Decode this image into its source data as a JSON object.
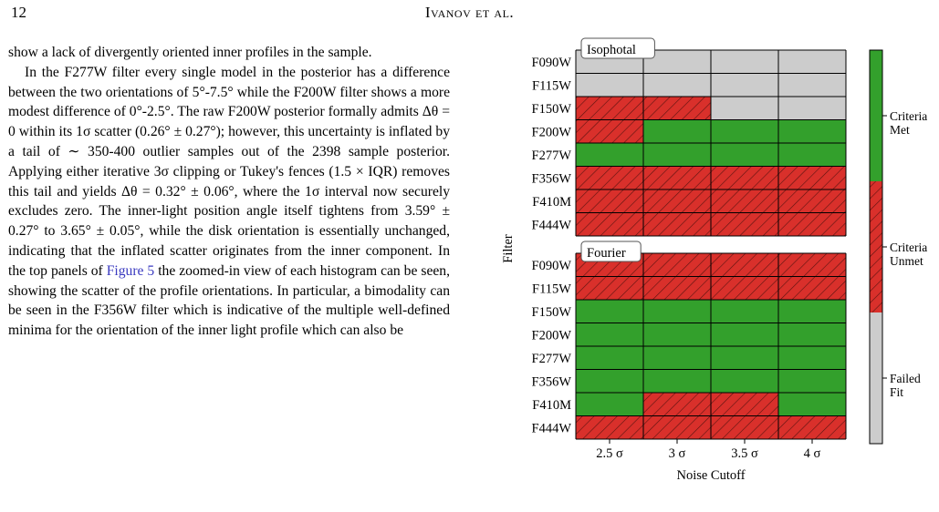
{
  "header": {
    "page_number": "12",
    "running_title": "Ivanov et al."
  },
  "text": {
    "p1": "show a lack of divergently oriented inner profiles in the sample.",
    "p2_a": "In the F277W filter every single model in the posterior has a difference between the two orientations of 5°-7.5° while the F200W filter shows a more modest difference of 0°-2.5°. The raw F200W posterior formally admits Δθ = 0 within its 1σ scatter (0.26° ± 0.27°); however, this uncertainty is inflated by a tail of ∼ 350-400 outlier samples out of the 2398 sample posterior. Applying either iterative 3σ clipping or Tukey's fences (1.5 × IQR) removes this tail and yields Δθ = 0.32° ± 0.06°, where the 1σ interval now securely excludes zero. The inner-light position angle itself tightens from 3.59° ± 0.27° to 3.65° ± 0.05°, while the disk orientation is essentially unchanged, indicating that the inflated scatter originates from the inner component. In the top panels of ",
    "p2_link": "Figure 5",
    "p2_b": " the zoomed-in view of each histogram can be seen, showing the scatter of the profile orientations. In particular, a bimodality can be seen in the F356W filter which is indicative of the multiple well-defined minima for the orientation of the inner light profile which can also be"
  },
  "chart_data": {
    "type": "heatmap",
    "xlabel": "Noise Cutoff",
    "ylabel": "Filter",
    "columns": [
      "2.5 σ",
      "3 σ",
      "3.5 σ",
      "4 σ"
    ],
    "status_colors": {
      "met": "#33a02c",
      "unmet": "#d9302b",
      "failed": "#cccccc"
    },
    "legend": [
      {
        "key": "met",
        "label_lines": [
          "Criteria",
          "Met"
        ]
      },
      {
        "key": "unmet",
        "label_lines": [
          "Criteria",
          "Unmet"
        ]
      },
      {
        "key": "failed",
        "label_lines": [
          "Failed",
          "Fit"
        ]
      }
    ],
    "panels": [
      {
        "name": "Isophotal",
        "rows": [
          {
            "filter": "F090W",
            "status": [
              "failed",
              "failed",
              "failed",
              "failed"
            ]
          },
          {
            "filter": "F115W",
            "status": [
              "failed",
              "failed",
              "failed",
              "failed"
            ]
          },
          {
            "filter": "F150W",
            "status": [
              "unmet",
              "unmet",
              "failed",
              "failed"
            ]
          },
          {
            "filter": "F200W",
            "status": [
              "unmet",
              "met",
              "met",
              "met"
            ]
          },
          {
            "filter": "F277W",
            "status": [
              "met",
              "met",
              "met",
              "met"
            ]
          },
          {
            "filter": "F356W",
            "status": [
              "unmet",
              "unmet",
              "unmet",
              "unmet"
            ]
          },
          {
            "filter": "F410M",
            "status": [
              "unmet",
              "unmet",
              "unmet",
              "unmet"
            ]
          },
          {
            "filter": "F444W",
            "status": [
              "unmet",
              "unmet",
              "unmet",
              "unmet"
            ]
          }
        ]
      },
      {
        "name": "Fourier",
        "rows": [
          {
            "filter": "F090W",
            "status": [
              "unmet",
              "unmet",
              "unmet",
              "unmet"
            ]
          },
          {
            "filter": "F115W",
            "status": [
              "unmet",
              "unmet",
              "unmet",
              "unmet"
            ]
          },
          {
            "filter": "F150W",
            "status": [
              "met",
              "met",
              "met",
              "met"
            ]
          },
          {
            "filter": "F200W",
            "status": [
              "met",
              "met",
              "met",
              "met"
            ]
          },
          {
            "filter": "F277W",
            "status": [
              "met",
              "met",
              "met",
              "met"
            ]
          },
          {
            "filter": "F356W",
            "status": [
              "met",
              "met",
              "met",
              "met"
            ]
          },
          {
            "filter": "F410M",
            "status": [
              "met",
              "unmet",
              "unmet",
              "met"
            ]
          },
          {
            "filter": "F444W",
            "status": [
              "unmet",
              "unmet",
              "unmet",
              "unmet"
            ]
          }
        ]
      }
    ]
  }
}
